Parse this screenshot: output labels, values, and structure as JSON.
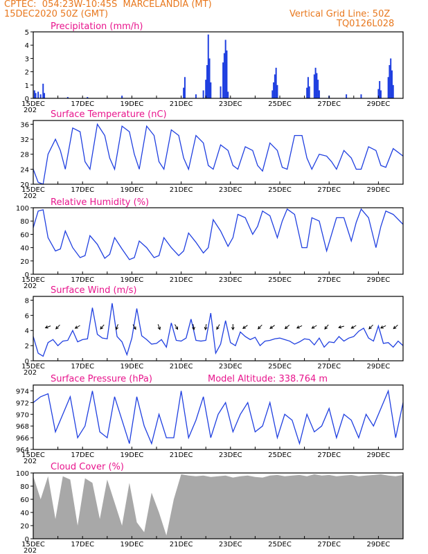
{
  "header": {
    "line1": "CPTEC:  054:23W-10:45S  MARCELANDIA (MT)",
    "line2": "15DEC2020 50Z (GMT)",
    "grid_note": "Vertical Grid Line: 50Z",
    "model_id": "TQ0126L028"
  },
  "colors": {
    "header": "#e8781e",
    "title": "#e8148c",
    "line": "#1f3fe0",
    "bar": "#1f3fe0",
    "cloud": "#a8a8a8"
  },
  "x_tick_labels": [
    "15DEC",
    "17DEC",
    "19DEC",
    "21DEC",
    "23DEC",
    "25DEC",
    "27DEC",
    "29DEC"
  ],
  "x_sublabel": "202",
  "chart_data": [
    {
      "type": "bar",
      "title": "Precipitation (mm/h)",
      "x_unit": "days since 15DEC 00Z",
      "ylim": [
        0,
        5
      ],
      "yticks": [
        0,
        1,
        2,
        3,
        4,
        5
      ],
      "points": [
        [
          0.05,
          0.6
        ],
        [
          0.1,
          0.4
        ],
        [
          0.2,
          0.5
        ],
        [
          0.3,
          0.3
        ],
        [
          0.4,
          1.1
        ],
        [
          0.45,
          0.4
        ],
        [
          1.4,
          0.1
        ],
        [
          2.2,
          0.1
        ],
        [
          3.6,
          0.2
        ],
        [
          6.1,
          0.8
        ],
        [
          6.15,
          1.6
        ],
        [
          6.6,
          0.3
        ],
        [
          6.9,
          0.6
        ],
        [
          7.0,
          1.4
        ],
        [
          7.05,
          2.5
        ],
        [
          7.1,
          4.8
        ],
        [
          7.15,
          3.0
        ],
        [
          7.2,
          1.2
        ],
        [
          7.6,
          0.9
        ],
        [
          7.7,
          2.7
        ],
        [
          7.75,
          3.4
        ],
        [
          7.8,
          4.4
        ],
        [
          7.85,
          3.6
        ],
        [
          7.9,
          0.5
        ],
        [
          9.7,
          0.6
        ],
        [
          9.75,
          1.2
        ],
        [
          9.8,
          1.8
        ],
        [
          9.85,
          2.3
        ],
        [
          9.9,
          1.0
        ],
        [
          11.1,
          0.8
        ],
        [
          11.15,
          1.6
        ],
        [
          11.2,
          0.9
        ],
        [
          11.4,
          1.8
        ],
        [
          11.45,
          2.3
        ],
        [
          11.5,
          1.9
        ],
        [
          11.55,
          1.4
        ],
        [
          11.6,
          0.6
        ],
        [
          12.0,
          0.2
        ],
        [
          12.7,
          0.3
        ],
        [
          13.3,
          0.3
        ],
        [
          14.0,
          0.7
        ],
        [
          14.05,
          1.3
        ],
        [
          14.1,
          0.6
        ],
        [
          14.4,
          1.6
        ],
        [
          14.45,
          2.5
        ],
        [
          14.5,
          3.0
        ],
        [
          14.55,
          2.1
        ],
        [
          14.6,
          1.0
        ]
      ]
    },
    {
      "type": "line",
      "title": "Surface Temperature (nC)",
      "ylim": [
        20,
        37
      ],
      "yticks": [
        20,
        24,
        28,
        32,
        36
      ],
      "x": [
        0,
        0.2,
        0.4,
        0.6,
        0.9,
        1.1,
        1.3,
        1.6,
        1.9,
        2.1,
        2.3,
        2.6,
        2.9,
        3.1,
        3.3,
        3.6,
        3.9,
        4.1,
        4.3,
        4.6,
        4.9,
        5.1,
        5.3,
        5.6,
        5.9,
        6.1,
        6.3,
        6.6,
        6.9,
        7.1,
        7.3,
        7.6,
        7.9,
        8.1,
        8.3,
        8.6,
        8.9,
        9.1,
        9.3,
        9.6,
        9.9,
        10.1,
        10.3,
        10.6,
        10.9,
        11.1,
        11.3,
        11.6,
        11.9,
        12.1,
        12.3,
        12.6,
        12.9,
        13.1,
        13.3,
        13.6,
        13.9,
        14.1,
        14.3,
        14.6,
        15.0
      ],
      "y": [
        24,
        20.5,
        20,
        28,
        32,
        29,
        24,
        35,
        34,
        26,
        24,
        36,
        33,
        27,
        24,
        35.5,
        34,
        28,
        24,
        35.5,
        33,
        26,
        24,
        34.5,
        33,
        27,
        24,
        33,
        31,
        25,
        24,
        30.5,
        29,
        25,
        24,
        30,
        29,
        25,
        23.5,
        31,
        29,
        24.5,
        24,
        33,
        33,
        27,
        24,
        28,
        27.5,
        26,
        24,
        29,
        27,
        24,
        24,
        30,
        29,
        25,
        24.5,
        29.5,
        27.5
      ]
    },
    {
      "type": "line",
      "title": "Relative Humidity (%)",
      "ylim": [
        0,
        100
      ],
      "yticks": [
        0,
        20,
        40,
        60,
        80,
        100
      ],
      "x": [
        0,
        0.2,
        0.4,
        0.6,
        0.9,
        1.1,
        1.3,
        1.6,
        1.9,
        2.1,
        2.3,
        2.6,
        2.9,
        3.1,
        3.3,
        3.6,
        3.9,
        4.1,
        4.3,
        4.6,
        4.9,
        5.1,
        5.3,
        5.6,
        5.9,
        6.1,
        6.3,
        6.6,
        6.9,
        7.1,
        7.3,
        7.6,
        7.9,
        8.1,
        8.3,
        8.6,
        8.9,
        9.1,
        9.3,
        9.6,
        9.9,
        10.1,
        10.3,
        10.6,
        10.9,
        11.1,
        11.3,
        11.6,
        11.9,
        12.1,
        12.3,
        12.6,
        12.9,
        13.1,
        13.3,
        13.6,
        13.9,
        14.1,
        14.3,
        14.6,
        15.0
      ],
      "y": [
        70,
        95,
        97,
        55,
        35,
        38,
        65,
        40,
        25,
        28,
        58,
        45,
        24,
        30,
        55,
        38,
        22,
        25,
        50,
        40,
        25,
        28,
        55,
        40,
        28,
        35,
        62,
        48,
        32,
        40,
        82,
        65,
        42,
        55,
        90,
        85,
        60,
        72,
        95,
        88,
        55,
        80,
        98,
        90,
        40,
        40,
        85,
        80,
        35,
        60,
        85,
        85,
        50,
        78,
        98,
        85,
        40,
        72,
        95,
        90,
        75
      ]
    },
    {
      "type": "line",
      "title": "Surface Wind (m/s)",
      "ylim": [
        0,
        8.5
      ],
      "yticks": [
        0,
        2,
        4,
        6,
        8
      ],
      "x": [
        0,
        0.2,
        0.4,
        0.6,
        0.8,
        1.0,
        1.2,
        1.4,
        1.6,
        1.8,
        2.0,
        2.2,
        2.4,
        2.6,
        2.8,
        3.0,
        3.2,
        3.4,
        3.6,
        3.8,
        4.0,
        4.2,
        4.4,
        4.6,
        4.8,
        5.0,
        5.2,
        5.4,
        5.6,
        5.8,
        6.0,
        6.2,
        6.4,
        6.6,
        6.8,
        7.0,
        7.2,
        7.4,
        7.6,
        7.8,
        8.0,
        8.2,
        8.4,
        8.6,
        8.8,
        9.0,
        9.2,
        9.4,
        9.6,
        9.8,
        10.0,
        10.2,
        10.4,
        10.6,
        10.8,
        11.0,
        11.2,
        11.4,
        11.6,
        11.8,
        12.0,
        12.2,
        12.4,
        12.6,
        12.8,
        13.0,
        13.2,
        13.4,
        13.6,
        13.8,
        14.0,
        14.2,
        14.4,
        14.6,
        14.8,
        15.0
      ],
      "y": [
        3.2,
        1.0,
        0.6,
        2.4,
        2.8,
        2.0,
        2.6,
        2.7,
        4.0,
        2.5,
        2.8,
        2.9,
        7.0,
        3.5,
        3.0,
        2.9,
        7.6,
        3.2,
        2.5,
        0.8,
        3.0,
        6.9,
        3.3,
        2.8,
        2.2,
        2.3,
        2.8,
        1.8,
        5.0,
        2.7,
        2.6,
        3.0,
        5.5,
        2.7,
        2.6,
        2.7,
        6.3,
        1.0,
        2.2,
        5.3,
        2.4,
        2.0,
        3.8,
        3.2,
        2.8,
        3.1,
        2.0,
        2.6,
        2.7,
        2.9,
        3.0,
        2.8,
        2.6,
        2.2,
        2.5,
        2.9,
        2.8,
        2.1,
        3.0,
        1.8,
        2.5,
        2.4,
        3.2,
        2.6,
        3.0,
        3.2,
        3.9,
        4.3,
        3.0,
        2.6,
        4.6,
        2.3,
        2.4,
        1.8,
        2.6,
        2.0
      ],
      "vectors": [
        {
          "x": 0.6,
          "angle": 200
        },
        {
          "x": 1.0,
          "angle": 225
        },
        {
          "x": 1.8,
          "angle": 210
        },
        {
          "x": 2.8,
          "angle": 230
        },
        {
          "x": 3.4,
          "angle": 250
        },
        {
          "x": 4.1,
          "angle": 300
        },
        {
          "x": 5.1,
          "angle": 290
        },
        {
          "x": 5.8,
          "angle": 300
        },
        {
          "x": 6.5,
          "angle": 280
        },
        {
          "x": 7.0,
          "angle": 260
        },
        {
          "x": 7.5,
          "angle": 240
        },
        {
          "x": 8.1,
          "angle": 270
        },
        {
          "x": 8.6,
          "angle": 215
        },
        {
          "x": 9.2,
          "angle": 225
        },
        {
          "x": 9.7,
          "angle": 215
        },
        {
          "x": 10.3,
          "angle": 220
        },
        {
          "x": 10.8,
          "angle": 205
        },
        {
          "x": 11.4,
          "angle": 210
        },
        {
          "x": 11.9,
          "angle": 230
        },
        {
          "x": 12.5,
          "angle": 195
        },
        {
          "x": 13.0,
          "angle": 210
        },
        {
          "x": 13.7,
          "angle": 225
        },
        {
          "x": 14.2,
          "angle": 205
        },
        {
          "x": 14.7,
          "angle": 220
        }
      ]
    },
    {
      "type": "line",
      "title": "Surface Pressure (hPa)",
      "ylim": [
        964,
        975
      ],
      "yticks": [
        964,
        966,
        968,
        970,
        972,
        974
      ],
      "x": [
        0,
        0.3,
        0.6,
        0.9,
        1.2,
        1.5,
        1.8,
        2.1,
        2.4,
        2.7,
        3.0,
        3.3,
        3.6,
        3.9,
        4.2,
        4.5,
        4.8,
        5.1,
        5.4,
        5.7,
        6.0,
        6.3,
        6.6,
        6.9,
        7.2,
        7.5,
        7.8,
        8.1,
        8.4,
        8.7,
        9.0,
        9.3,
        9.6,
        9.9,
        10.2,
        10.5,
        10.8,
        11.1,
        11.4,
        11.7,
        12.0,
        12.3,
        12.6,
        12.9,
        13.2,
        13.5,
        13.8,
        14.1,
        14.4,
        14.7,
        15.0
      ],
      "y": [
        972,
        973,
        973.5,
        967,
        970,
        973,
        966,
        968,
        974,
        967,
        966,
        973,
        969,
        965,
        973,
        968,
        965,
        970,
        966,
        966,
        974,
        966,
        969,
        973,
        966,
        970,
        972,
        967,
        970,
        972,
        967,
        968,
        972,
        966,
        970,
        969,
        965,
        970,
        967,
        968,
        971,
        966,
        970,
        969,
        966,
        970,
        968,
        971,
        974,
        966,
        972
      ]
    },
    {
      "type": "area",
      "title": "Cloud Cover (%)",
      "ylim": [
        0,
        100
      ],
      "yticks": [
        0,
        20,
        40,
        60,
        80,
        100
      ],
      "x": [
        0,
        0.3,
        0.6,
        0.9,
        1.2,
        1.5,
        1.8,
        2.1,
        2.4,
        2.7,
        3.0,
        3.3,
        3.6,
        3.9,
        4.2,
        4.5,
        4.8,
        5.1,
        5.4,
        5.7,
        6.0,
        6.3,
        6.6,
        6.9,
        7.2,
        7.5,
        7.8,
        8.1,
        8.4,
        8.7,
        9.0,
        9.3,
        9.6,
        9.9,
        10.2,
        10.5,
        10.8,
        11.1,
        11.4,
        11.7,
        12.0,
        12.3,
        12.6,
        12.9,
        13.2,
        13.5,
        13.8,
        14.1,
        14.4,
        14.7,
        15.0
      ],
      "y": [
        95,
        60,
        95,
        30,
        95,
        90,
        20,
        92,
        85,
        30,
        90,
        55,
        20,
        85,
        25,
        10,
        70,
        40,
        5,
        60,
        98,
        96,
        95,
        96,
        94,
        95,
        96,
        93,
        95,
        96,
        94,
        93,
        96,
        97,
        95,
        96,
        97,
        95,
        98,
        96,
        97,
        95,
        96,
        97,
        95,
        96,
        97,
        98,
        96,
        95,
        97
      ]
    }
  ],
  "annotations": {
    "model_altitude": "Model Altitude: 338.764 m"
  }
}
